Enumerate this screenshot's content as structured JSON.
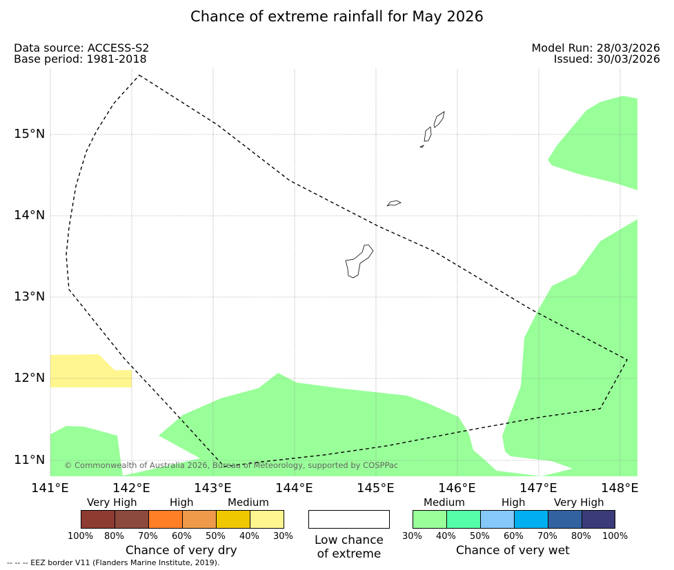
{
  "title": "Chance of extreme rainfall for May 2026",
  "data_source": "Data source: ACCESS-S2",
  "base_period": "Base period: 1981-2018",
  "model_run": "Model Run: 28/03/2026",
  "issued": "Issued: 30/03/2026",
  "copyright": "© Commonwealth of Australia 2026, Bureau of Meteorology, supported by COSPPac",
  "map": {
    "lon_labels": [
      "141°E",
      "142°E",
      "143°E",
      "144°E",
      "145°E",
      "146°E",
      "147°E",
      "148°E"
    ],
    "lat_labels": [
      "15°N",
      "14°N",
      "13°N",
      "12°N",
      "11°N"
    ],
    "land_color": "#ffffff",
    "eez_line": "dashed",
    "areas": [
      {
        "name": "medium-wet",
        "color": "#99ff99"
      },
      {
        "name": "medium-dry",
        "color": "#fff68f"
      }
    ]
  },
  "legend": {
    "dry": {
      "caption": "Chance of very dry",
      "categories": [
        "Very High",
        "High",
        "Medium"
      ],
      "colors": [
        "#8e3b32",
        "#8c4a3c",
        "#ff7f27",
        "#ee9a4a",
        "#f0c800",
        "#fff68f"
      ],
      "ticks": [
        "100%",
        "80%",
        "70%",
        "60%",
        "50%",
        "40%",
        "30%"
      ]
    },
    "low": {
      "caption_line1": "Low chance",
      "caption_line2": "of extreme",
      "color": "#ffffff"
    },
    "wet": {
      "caption": "Chance of very wet",
      "categories": [
        "Medium",
        "High",
        "Very High"
      ],
      "colors": [
        "#99ff99",
        "#55ffaa",
        "#85c8fa",
        "#00aff0",
        "#3263a0",
        "#3b3b7a"
      ],
      "ticks": [
        "30%",
        "40%",
        "50%",
        "60%",
        "70%",
        "80%",
        "100%"
      ]
    }
  },
  "footer": "--  --  -- EEZ border V11 (Flanders Marine Institute, 2019)."
}
